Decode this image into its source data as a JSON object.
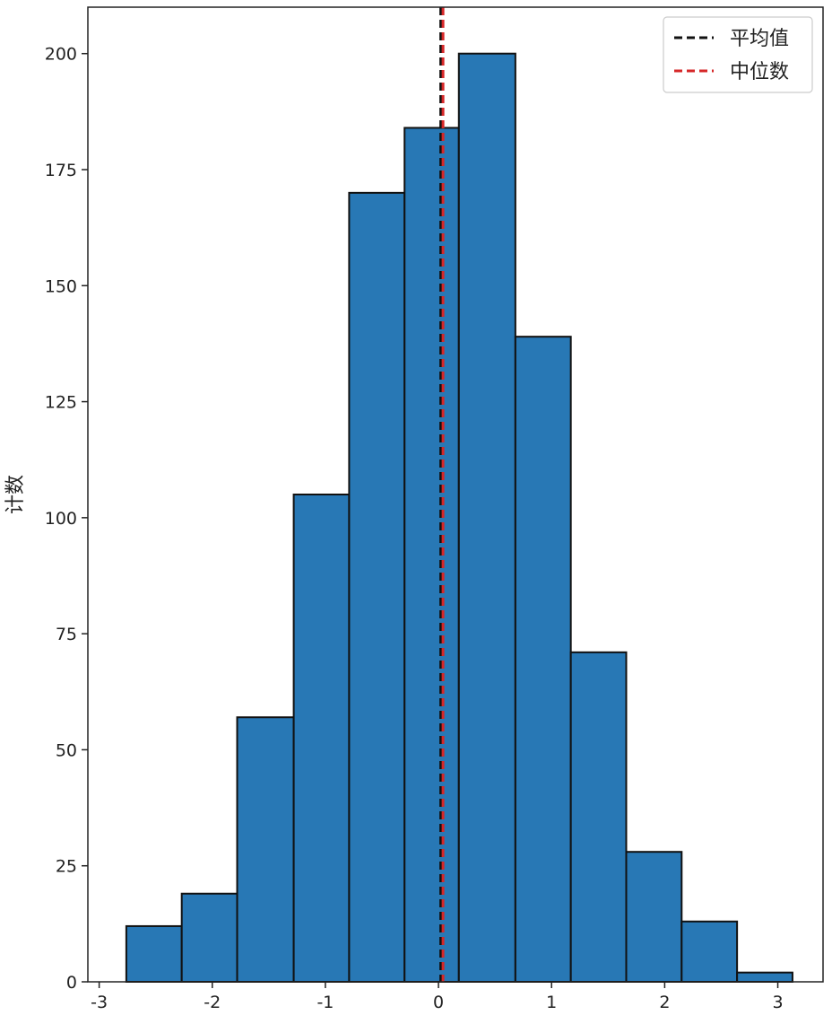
{
  "chart_data": {
    "type": "bar",
    "title": "",
    "xlabel": "",
    "ylabel": "计数",
    "xlim": [
      -3.1,
      3.4
    ],
    "ylim": [
      0,
      210
    ],
    "xticks": [
      -3,
      -2,
      -1,
      0,
      1,
      2,
      3
    ],
    "xtick_labels": [
      "-3",
      "-2",
      "-1",
      "0",
      "1",
      "2",
      "3"
    ],
    "yticks": [
      0,
      25,
      50,
      75,
      100,
      125,
      150,
      175,
      200
    ],
    "ytick_labels": [
      "0",
      "25",
      "50",
      "75",
      "100",
      "125",
      "150",
      "175",
      "200"
    ],
    "bin_edges": [
      -2.76,
      -2.27,
      -1.78,
      -1.28,
      -0.79,
      -0.3,
      0.18,
      0.68,
      1.17,
      1.66,
      2.15,
      2.64,
      3.13
    ],
    "counts": [
      12,
      19,
      57,
      105,
      170,
      184,
      200,
      139,
      71,
      28,
      13,
      2
    ],
    "bar_color": "#2878b5",
    "bar_edge_color": "#111111",
    "grid": false,
    "legend_position": "top-right",
    "reference_lines": [
      {
        "label": "平均值",
        "x": 0.02,
        "color": "#111111",
        "style": "dashed"
      },
      {
        "label": "中位数",
        "x": 0.04,
        "color": "#d62728",
        "style": "dashed"
      }
    ]
  }
}
